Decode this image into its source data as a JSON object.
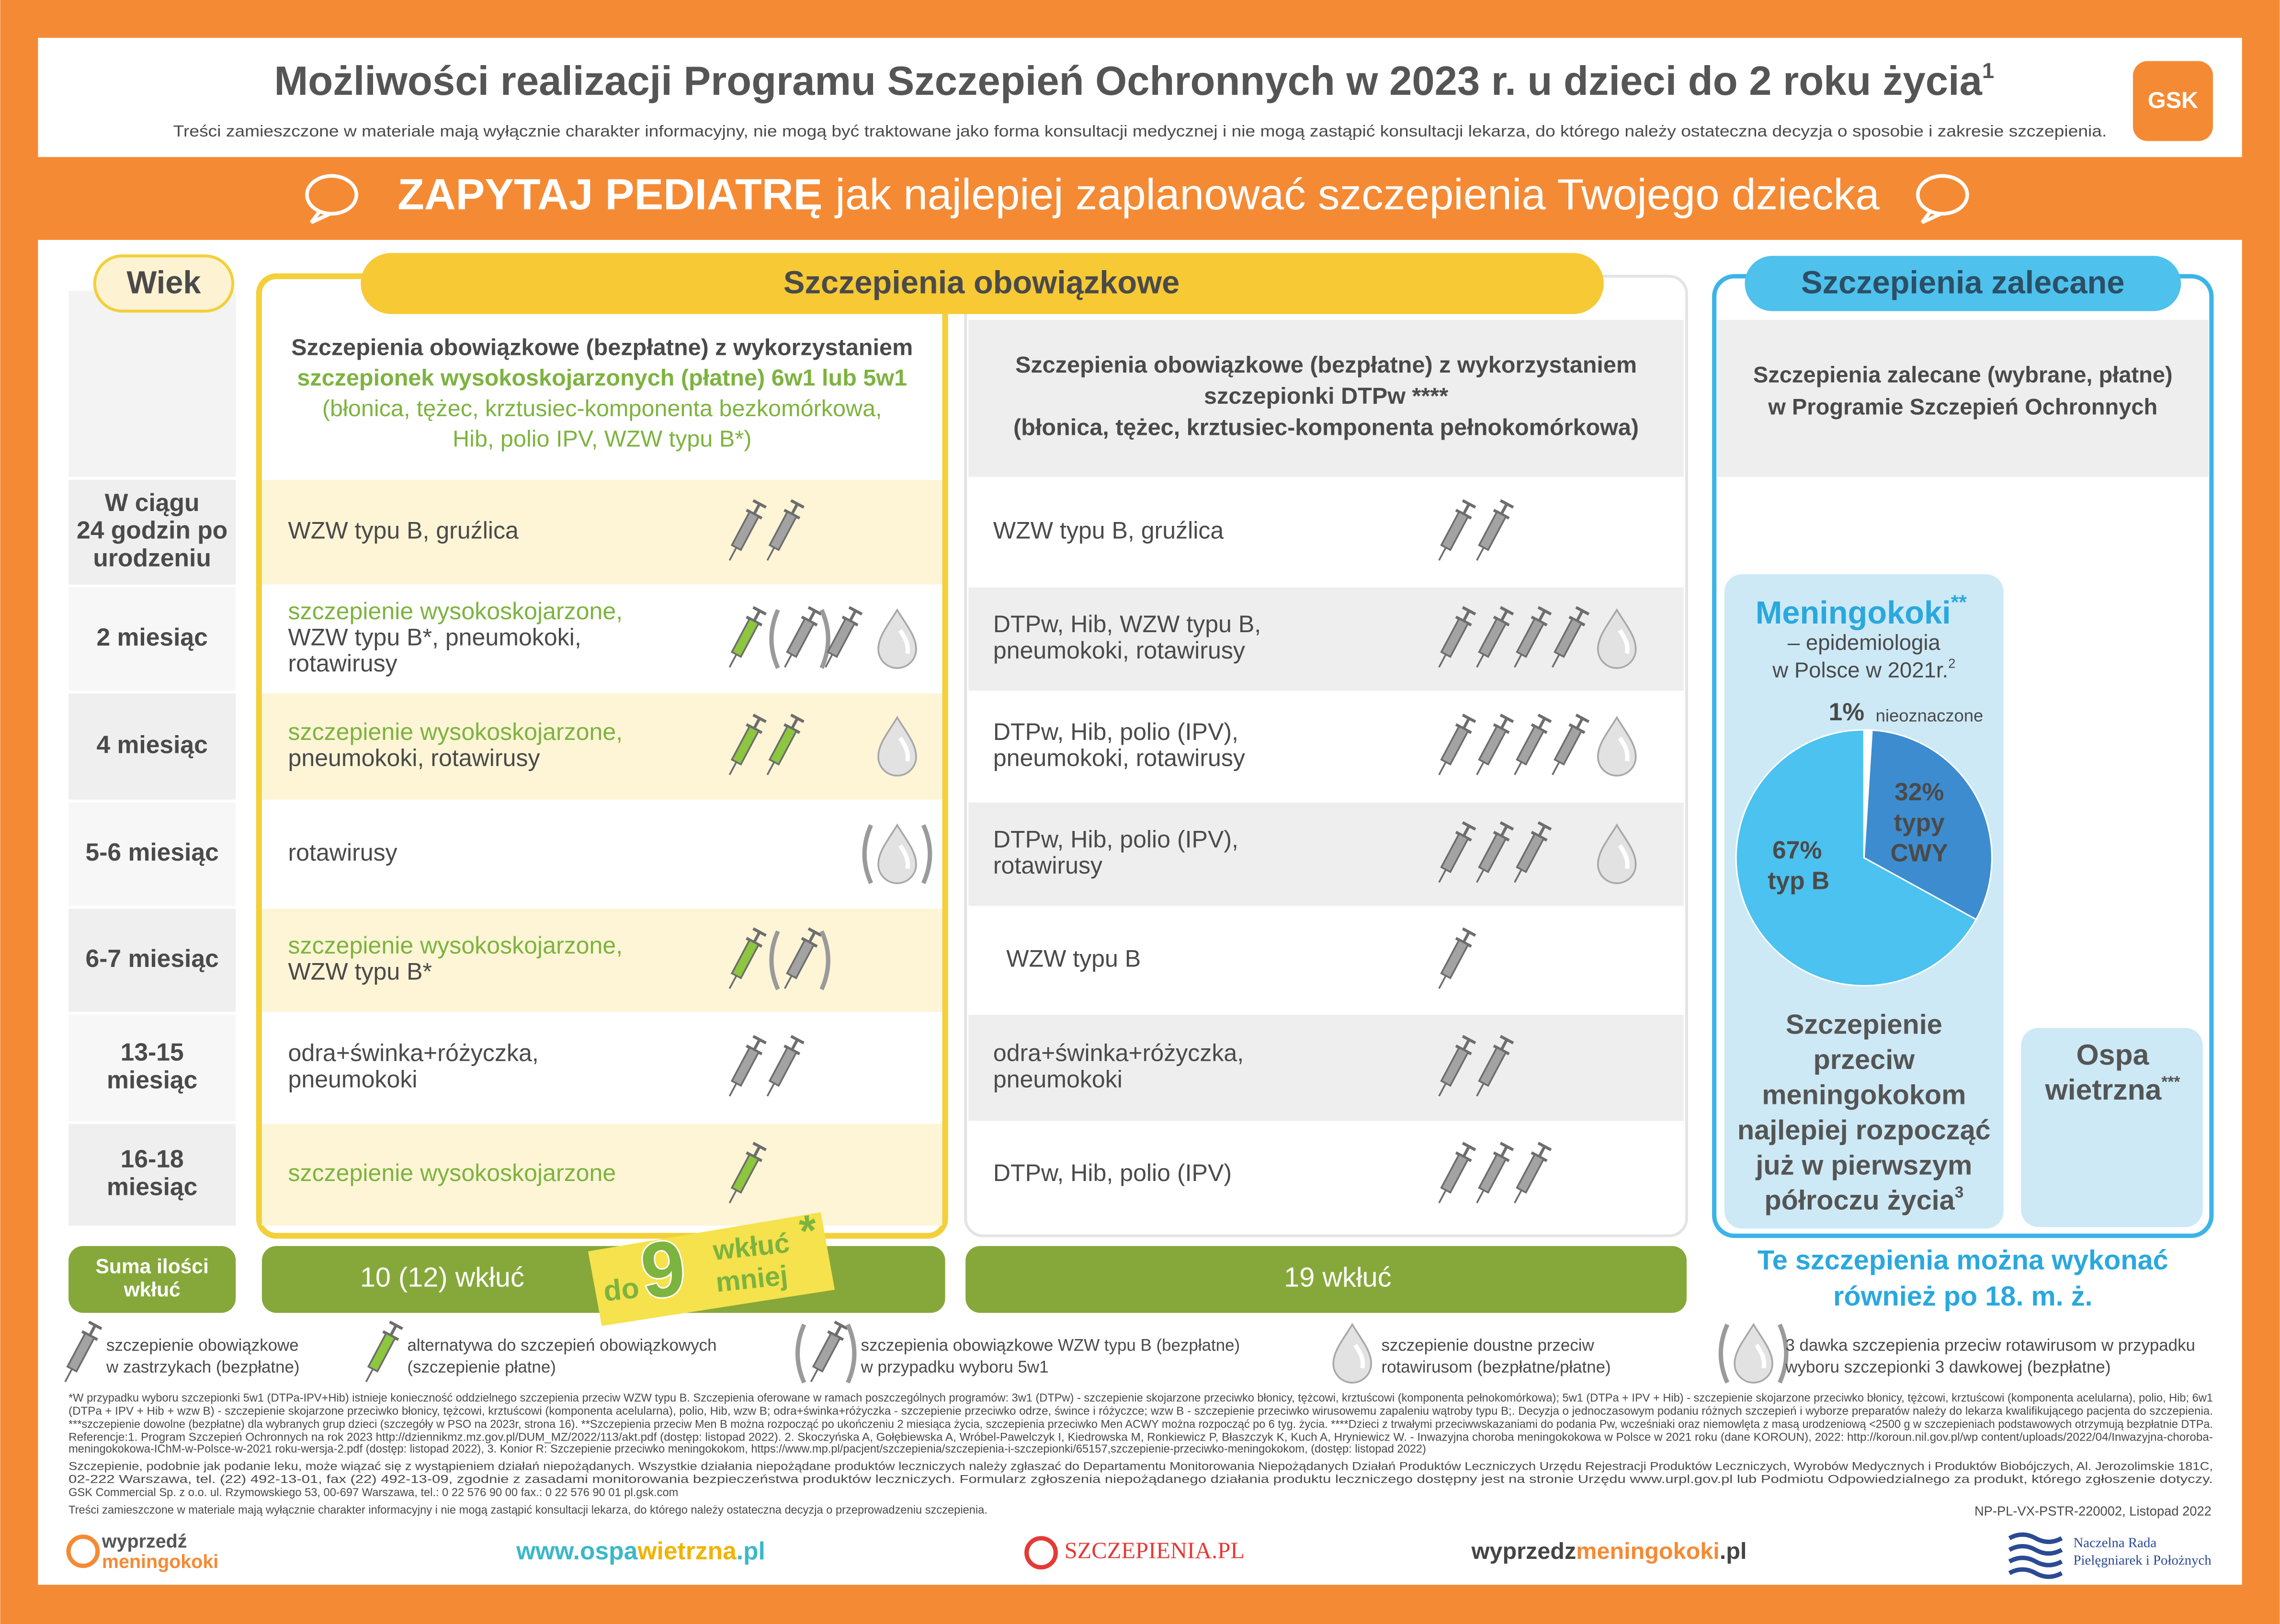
{
  "header": {
    "title": "Możliwości realizacji Programu Szczepień Ochronnych w 2023 r. u dzieci do 2 roku życia",
    "title_note": "1",
    "disclaimer": "Treści zamieszczone w materiale mają wyłącznie charakter informacyjny, nie mogą być traktowane jako forma konsultacji medycznej i nie mogą zastąpić konsultacji lekarza, do którego należy ostateczna decyzja o sposobie i zakresie szczepienia.",
    "logo": "GSK"
  },
  "banner": {
    "bold": "ZAPYTAJ PEDIATRĘ",
    "text": "jak najlepiej zaplanować szczepienia Twojego dziecka"
  },
  "columns": {
    "age": "Wiek",
    "mandatory": "Szczepienia obowiązkowe",
    "recommended": "Szczepienia zalecane"
  },
  "col1_header": [
    "Szczepienia obowiązkowe (bezpłatne) z wykorzystaniem",
    "szczepionek wysokoskojarzonych (płatne) 6w1 lub 5w1",
    "(błonica, tężec, krztusiec-komponenta bezkomórkowa,",
    "Hib, polio IPV, WZW typu B*)"
  ],
  "col2_header": [
    "Szczepienia obowiązkowe (bezpłatne) z wykorzystaniem",
    "szczepionki DTPw ****",
    "(błonica, tężec, krztusiec-komponenta pełnokomórkowa)"
  ],
  "col3_header": [
    "Szczepienia zalecane (wybrane, płatne)",
    "w Programie Szczepień Ochronnych"
  ],
  "rows": [
    {
      "age": [
        "W ciągu",
        "24 godzin po",
        "urodzeniu"
      ],
      "col1": {
        "plain": [
          "WZW typu B, gruźlica"
        ]
      },
      "col2": [
        "WZW typu B, gruźlica"
      ]
    },
    {
      "age": [
        "2 miesiąc"
      ],
      "col1": {
        "green": [
          "szczepienie wysokoskojarzone,"
        ],
        "plain": [
          "WZW typu B*, pneumokoki,",
          "rotawirusy"
        ]
      },
      "col2": [
        "DTPw, Hib, WZW typu B,",
        "pneumokoki, rotawirusy"
      ]
    },
    {
      "age": [
        "4 miesiąc"
      ],
      "col1": {
        "green": [
          "szczepienie wysokoskojarzone,"
        ],
        "plain": [
          "pneumokoki, rotawirusy"
        ]
      },
      "col2": [
        "DTPw, Hib, polio (IPV),",
        "pneumokoki, rotawirusy"
      ]
    },
    {
      "age": [
        "5-6 miesiąc"
      ],
      "col1": {
        "plain": [
          "rotawirusy"
        ]
      },
      "col2": [
        "DTPw, Hib, polio (IPV),",
        "rotawirusy"
      ]
    },
    {
      "age": [
        "6-7 miesiąc"
      ],
      "col1": {
        "green": [
          "szczepienie wysokoskojarzone,"
        ],
        "plain": [
          "WZW typu B*"
        ]
      },
      "col2": [
        "WZW typu B"
      ]
    },
    {
      "age": [
        "13-15",
        "miesiąc"
      ],
      "col1": {
        "plain": [
          "odra+świnka+różyczka,",
          "pneumokoki"
        ]
      },
      "col2": [
        "odra+świnka+różyczka,",
        "pneumokoki"
      ]
    },
    {
      "age": [
        "16-18",
        "miesiąc"
      ],
      "col1": {
        "green": [
          "szczepienie wysokoskojarzone"
        ]
      },
      "col2": [
        "DTPw, Hib, polio (IPV)"
      ]
    }
  ],
  "totals": {
    "label": [
      "Suma ilości",
      "wkłuć"
    ],
    "col1": "10 (12) wkłuć",
    "col2": "19 wkłuć",
    "sticker": {
      "do": "do",
      "number": "9",
      "word": "wkłuć",
      "star": "*",
      "less": "mniej"
    },
    "note": [
      "Te szczepienia można wykonać",
      "również po 18. m. ż."
    ]
  },
  "meningococcus": {
    "title": "Meningokoki",
    "title_note": "**",
    "subtitle": [
      "– epidemiologia",
      "w Polsce w 2021r."
    ],
    "subtitle_note": "2",
    "pie": {
      "slices": [
        {
          "value": 1,
          "label": "1%",
          "name_lines": [
            "nieoznaczone"
          ],
          "color": "#ffffff"
        },
        {
          "value": 32,
          "label": "32%",
          "name_lines": [
            "typy",
            "CWY"
          ],
          "color": "#3d8ccf"
        },
        {
          "value": 67,
          "label": "67%",
          "name_lines": [
            "typ B"
          ],
          "color": "#4bc2ef"
        }
      ]
    },
    "advice": [
      "Szczepienie",
      "przeciw",
      "meningokokom",
      "najlepiej rozpocząć",
      "już w pierwszym",
      "półroczu życia"
    ],
    "advice_note": "3"
  },
  "chickenpox": {
    "lines": [
      "Ospa",
      "wietrzna"
    ],
    "note": "***"
  },
  "legend": [
    {
      "lines": [
        "szczepienie obowiązkowe",
        "w zastrzykach (bezpłatne)"
      ]
    },
    {
      "lines": [
        "alternatywa do szczepień obowiązkowych",
        "(szczepienie płatne)"
      ]
    },
    {
      "lines": [
        "szczepienia obowiązkowe WZW typu B (bezpłatne)",
        "w przypadku wyboru 5w1"
      ]
    },
    {
      "lines": [
        "szczepienie doustne przeciw",
        "rotawirusom  (bezpłatne/płatne)"
      ]
    },
    {
      "lines": [
        "3 dawka szczepienia przeciw rotawirusom w przypadku",
        "wyboru szczepionki 3 dawkowej (bezpłatne)"
      ]
    }
  ],
  "footnotes": [
    "*W przypadku wyboru szczepionki 5w1 (DTPa-IPV+Hib) istnieje konieczność oddzielnego szczepienia przeciw WZW typu B. Szczepienia oferowane w ramach poszczególnych programów: 3w1 (DTPw) - szczepienie skojarzone przeciwko błonicy, tężcowi, krztuścowi (komponenta pełnokomórkowa); 5w1 (DTPa + IPV + Hib) - szczepienie skojarzone przeciwko błonicy, tężcowi, krztuścowi (komponenta acelularna), polio, Hib; 6w1",
    "(DTPa + IPV + Hib + wzw B) - szczepienie skojarzone przeciwko błonicy, tężcowi, krztuścowi (komponenta acelularna), polio, Hib, wzw B; odra+świnka+różyczka - szczepienie przeciwko odrze, śwince i różyczce; wzw B - szczepienie przeciwko wirusowemu zapaleniu wątroby typu B;. Decyzja o jednoczasowym podaniu różnych szczepień i wyborze preparatów należy do lekarza kwalifikującego pacjenta do szczepienia.",
    "***szczepienie dowolne (bezpłatne) dla wybranych grup dzieci (szczegóły w PSO na 2023r, strona 16). **Szczepienia przeciw Men B można rozpocząć po ukończeniu 2 miesiąca życia, szczepienia przeciwko Men ACWY można rozpocząć po 6 tyg. życia. ****Dzieci z trwałymi przeciwwskazaniami do podania Pw, wcześniaki oraz niemowlęta z masą urodzeniową <2500 g w szczepieniach podstawowych otrzymują bezpłatnie DTPa.",
    "Referencje:1. Program Szczepień Ochronnych na rok 2023 http://dziennikmz.mz.gov.pl/DUM_MZ/2022/113/akt.pdf (dostęp: listopad 2022). 2. Skoczyńska A, Gołębiewska A, Wróbel-Pawelczyk I, Kiedrowska M, Ronkiewicz P, Błaszczyk K, Kuch A, Hryniewicz W. - Inwazyjna choroba meningokokowa w Polsce w 2021 roku (dane KOROUN), 2022: http://koroun.nil.gov.pl/wp content/uploads/2022/04/Inwazyjna-choroba-",
    "meningokokowa-IChM-w-Polsce-w-2021 roku-wersja-2.pdf (dostęp: listopad 2022), 3. Konior R: Szczepienie przeciwko meningokokom, https://www.mp.pl/pacjent/szczepienia/szczepienia-i-szczepionki/65157,szczepienie-przeciwko-meningokokom, (dostęp: listopad 2022)",
    "Szczepienie, podobnie jak podanie leku, może wiązać się z wystąpieniem działań niepożądanych. Wszystkie działania niepożądane produktów leczniczych należy zgłaszać do Departamentu Monitorowania Niepożądanych Działań Produktów Leczniczych Urzędu Rejestracji Produktów Leczniczych, Wyrobów Medycznych i Produktów Biobójczych, Al. Jerozolimskie 181C,",
    "02-222 Warszawa, tel. (22) 492-13-01, fax (22) 492-13-09, zgodnie z zasadami monitorowania bezpieczeństwa produktów leczniczych. Formularz zgłoszenia niepożądanego działania produktu leczniczego dostępny jest na stronie Urzędu www.urpl.gov.pl lub Podmiotu Odpowiedzialnego za produkt, którego zgłoszenie dotyczy.",
    "GSK Commercial Sp. z o.o. ul. Rzymowskiego 53, 00-697 Warszawa, tel.: 0 22 576 90 00 fax.: 0 22 576 90 01 pl.gsk.com",
    "Treści zamieszczone w materiale mają wyłącznie charakter informacyjny i nie mogą zastąpić konsultacji lekarza, do którego należy ostateczna decyzja o przeprowadzeniu szczepienia."
  ],
  "code": "NP-PL-VX-PSTR-220002, Listopad 2022",
  "logos": {
    "wyprzedz": [
      "wyprzedź",
      "meningokoki"
    ],
    "ospa": [
      "www.ospa",
      "wietrzna",
      ".pl"
    ],
    "szczepienia": "SZCZEPIENIA.PL",
    "meningo_site": [
      "wyprzedz",
      "meningokoki",
      ".pl"
    ],
    "nrpip": [
      "Naczelna Rada",
      "Pielęgniarek i Położnych"
    ]
  }
}
